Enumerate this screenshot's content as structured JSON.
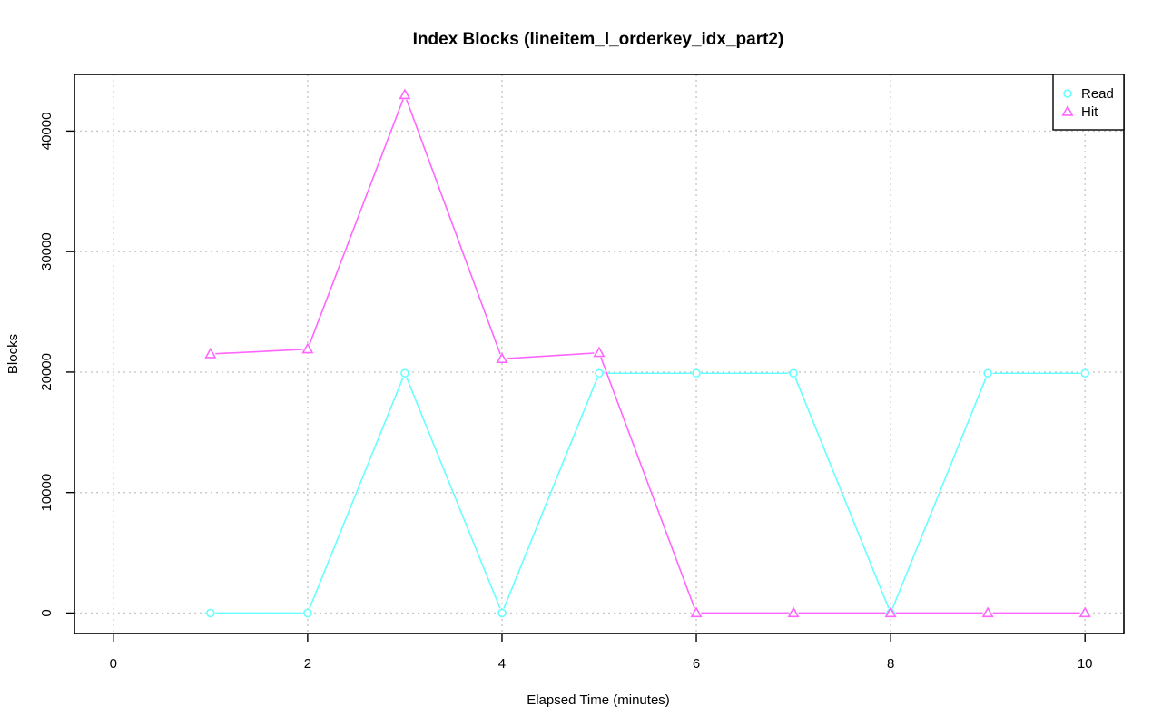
{
  "chart_data": {
    "type": "line",
    "title": "Index Blocks (lineitem_l_orderkey_idx_part2)",
    "xlabel": "Elapsed Time (minutes)",
    "ylabel": "Blocks",
    "xlim": [
      -0.4,
      10.4
    ],
    "ylim": [
      -1700,
      44700
    ],
    "x_ticks": [
      0,
      2,
      4,
      6,
      8,
      10
    ],
    "y_ticks": [
      0,
      10000,
      20000,
      30000,
      40000
    ],
    "grid": true,
    "legend_position": "top-right",
    "series": [
      {
        "name": "Read",
        "color": "#66ffff",
        "marker": "circle",
        "x": [
          1,
          2,
          3,
          4,
          5,
          6,
          7,
          8,
          9,
          10
        ],
        "values": [
          0,
          0,
          19900,
          0,
          19900,
          19900,
          19900,
          0,
          19900,
          19900
        ]
      },
      {
        "name": "Hit",
        "color": "#ff66ff",
        "marker": "triangle",
        "x": [
          1,
          2,
          3,
          4,
          5,
          6,
          7,
          8,
          9,
          10
        ],
        "values": [
          21500,
          21900,
          43000,
          21100,
          21600,
          0,
          0,
          0,
          0,
          0
        ]
      }
    ]
  }
}
